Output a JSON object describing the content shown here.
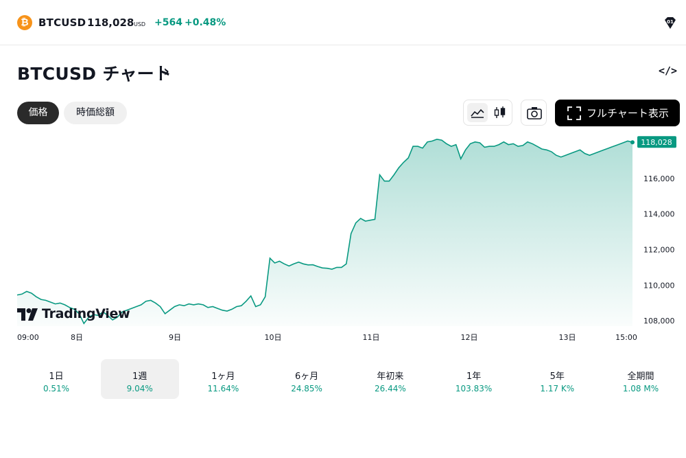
{
  "header": {
    "icon": "bitcoin-icon",
    "icon_glyph": "₿",
    "symbol": "BTCUSD",
    "price": "118,028",
    "currency": "USD",
    "change": "+564",
    "change_percent": "+0.48%",
    "right_icon": "shield-icon"
  },
  "title": {
    "text": "BTCUSD チャート",
    "arrow": "›",
    "embed_icon": "</>"
  },
  "toggles": {
    "price_label": "価格",
    "market_cap_label": "時価総額"
  },
  "toolbar": {
    "line_chart_icon": "line-chart-icon",
    "candle_chart_icon": "candlestick-icon",
    "camera_icon": "camera-icon",
    "full_chart_label": "フルチャート表示"
  },
  "chart_data": {
    "type": "area",
    "title": "",
    "xlabel": "",
    "ylabel": "",
    "x_ticks": [
      "09:00",
      "8日",
      "9日",
      "10日",
      "11日",
      "12日",
      "13日",
      "15:00"
    ],
    "y_ticks": [
      "108,000",
      "110,000",
      "112,000",
      "114,000",
      "116,000"
    ],
    "ylim": [
      107700,
      118500
    ],
    "current_price_label": "118,028",
    "current_price": 118028,
    "line_color": "#089981",
    "fill_color": "#089981",
    "grid": false,
    "watermark": "TradingView",
    "series": [
      {
        "values": [
          109450,
          109500,
          109650,
          109550,
          109350,
          109200,
          109150,
          109050,
          108950,
          109000,
          108900,
          108750,
          108650,
          108400,
          107850,
          108200,
          108350,
          108300,
          108500,
          108300,
          108050,
          108200,
          108500,
          108600,
          108700,
          108800,
          108900,
          109100,
          109150,
          109000,
          108800,
          108400,
          108600,
          108800,
          108900,
          108850,
          108950,
          108900,
          108950,
          108900,
          108750,
          108800,
          108700,
          108600,
          108550,
          108650,
          108800,
          108850,
          109100,
          109400,
          108800,
          108900,
          109350,
          111520,
          111250,
          111350,
          111200,
          111080,
          111200,
          111300,
          111200,
          111140,
          111150,
          111050,
          110970,
          110950,
          110900,
          111000,
          111000,
          111200,
          112900,
          113500,
          113750,
          113600,
          113650,
          113700,
          116200,
          115850,
          115850,
          116200,
          116600,
          116900,
          117150,
          117800,
          117800,
          117700,
          118050,
          118100,
          118200,
          118150,
          117950,
          117800,
          117900,
          117100,
          117600,
          117950,
          118050,
          118000,
          117750,
          117800,
          117800,
          117900,
          118050,
          117900,
          117950,
          117800,
          117850,
          118050,
          117950,
          117800,
          117650,
          117600,
          117500,
          117300,
          117200,
          117300,
          117400,
          117500,
          117600,
          117400,
          117300,
          117400,
          117500,
          117600,
          117700,
          117800,
          117900,
          118000,
          118100,
          118028
        ]
      }
    ]
  },
  "periods": [
    {
      "label": "1日",
      "value": "0.51%"
    },
    {
      "label": "1週",
      "value": "9.04%"
    },
    {
      "label": "1ヶ月",
      "value": "11.64%"
    },
    {
      "label": "6ヶ月",
      "value": "24.85%"
    },
    {
      "label": "年初来",
      "value": "26.44%"
    },
    {
      "label": "1年",
      "value": "103.83%"
    },
    {
      "label": "5年",
      "value": "1.17 K%"
    },
    {
      "label": "全期間",
      "value": "1.08 M%"
    }
  ]
}
